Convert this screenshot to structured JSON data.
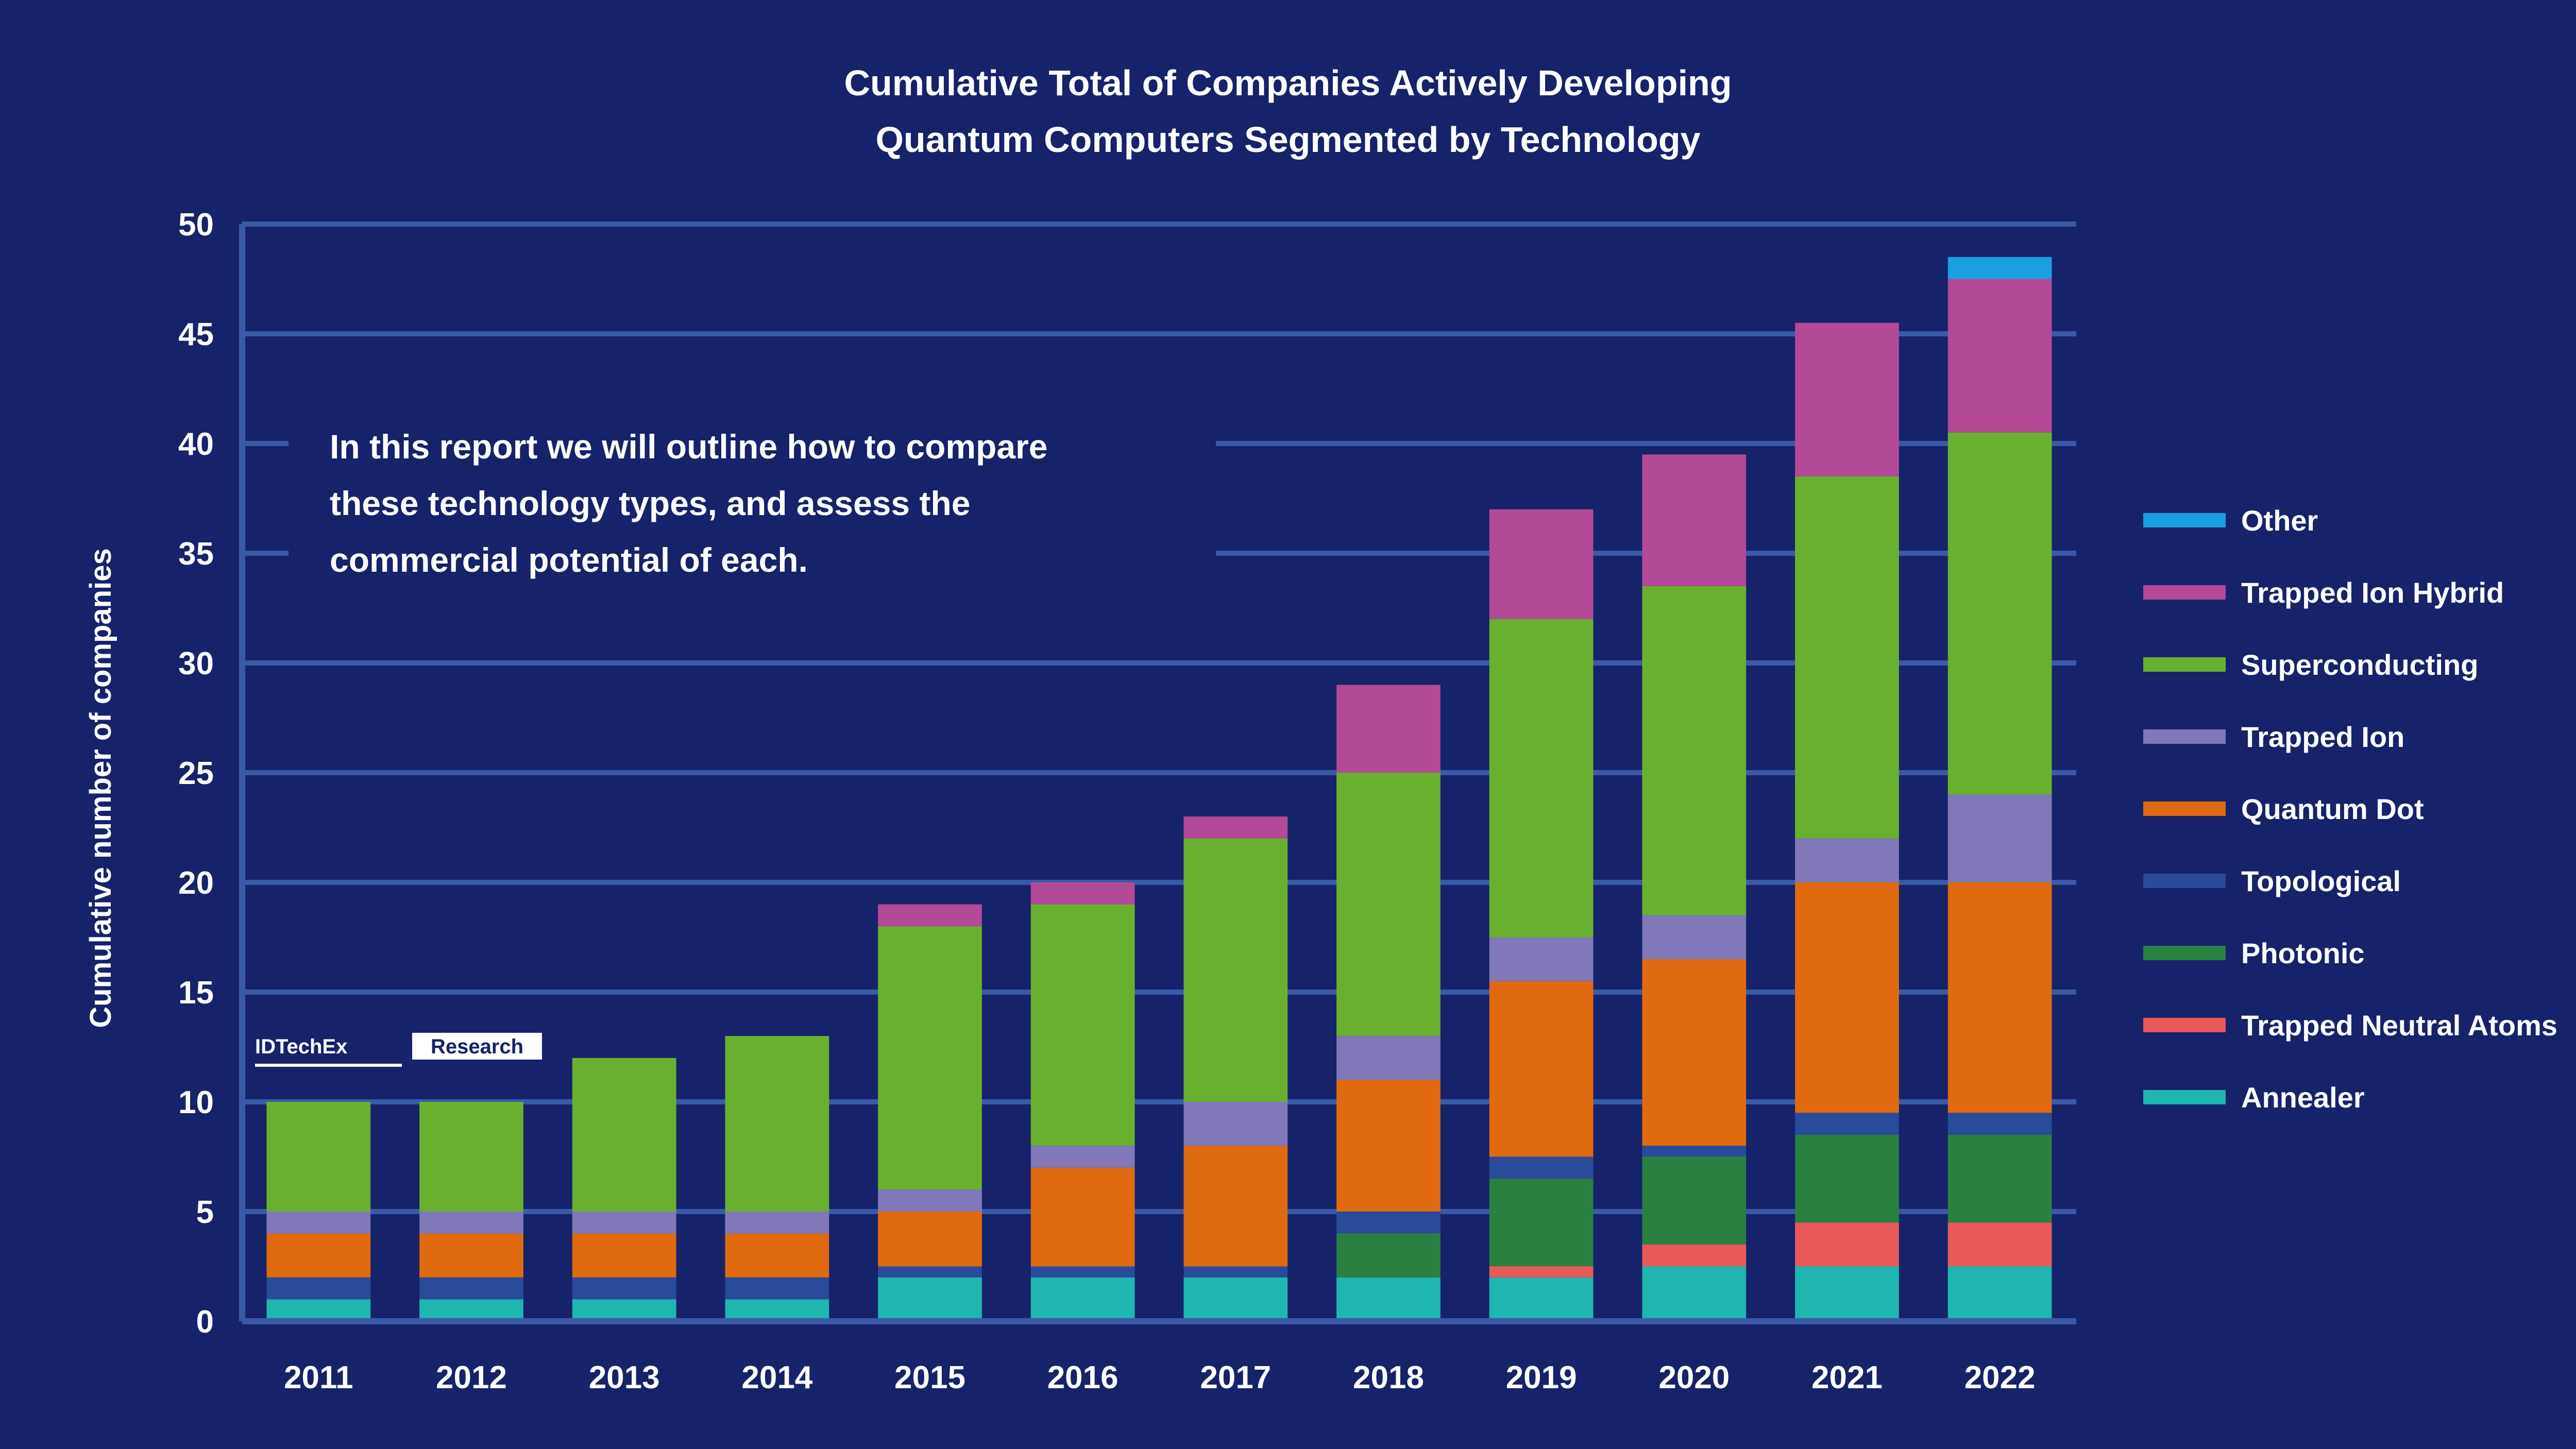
{
  "chart_data": {
    "type": "bar",
    "stacked": true,
    "title": [
      "Cumulative Total of Companies Actively Developing",
      "Quantum Computers Segmented by Technology"
    ],
    "ylabel": "Cumulative number of companies",
    "xlabel": "",
    "ylim": [
      0,
      50
    ],
    "yticks": [
      0,
      5,
      10,
      15,
      20,
      25,
      30,
      35,
      40,
      45,
      50
    ],
    "categories": [
      "2011",
      "2012",
      "2013",
      "2014",
      "2015",
      "2016",
      "2017",
      "2018",
      "2019",
      "2020",
      "2021",
      "2022"
    ],
    "series": [
      {
        "name": "Annealer",
        "color": "#20b5b0",
        "values": [
          1,
          1,
          1,
          1,
          2,
          2,
          2,
          2,
          2,
          2.5,
          2.5,
          2.5
        ]
      },
      {
        "name": "Trapped Neutral Atoms",
        "color": "#e85a5a",
        "values": [
          0,
          0,
          0,
          0,
          0,
          0,
          0,
          0,
          0.5,
          1,
          2,
          2
        ]
      },
      {
        "name": "Photonic",
        "color": "#2a8040",
        "values": [
          0,
          0,
          0,
          0,
          0,
          0,
          0,
          2,
          4,
          4,
          4,
          4
        ]
      },
      {
        "name": "Topological",
        "color": "#2a4a9a",
        "values": [
          1,
          1,
          1,
          1,
          0.5,
          0.5,
          0.5,
          1,
          1,
          0.5,
          1,
          1
        ]
      },
      {
        "name": "Quantum Dot",
        "color": "#e06a10",
        "values": [
          2,
          2,
          2,
          2,
          2.5,
          4.5,
          5.5,
          6,
          8,
          8.5,
          10.5,
          10.5
        ]
      },
      {
        "name": "Trapped Ion",
        "color": "#8078b8",
        "values": [
          1,
          1,
          1,
          1,
          1,
          1,
          2,
          2,
          2,
          2,
          2,
          4
        ]
      },
      {
        "name": "Superconducting",
        "color": "#6ab030",
        "values": [
          5,
          5,
          7,
          8,
          12,
          11,
          12,
          12,
          14.5,
          15,
          16.5,
          16.5
        ]
      },
      {
        "name": "Trapped Ion Hybrid",
        "color": "#b24a98",
        "values": [
          0,
          0,
          0,
          0,
          1,
          1,
          1,
          4,
          5,
          6,
          7,
          7
        ]
      },
      {
        "name": "Other",
        "color": "#1aa0e0",
        "values": [
          0,
          0,
          0,
          0,
          0,
          0,
          0,
          0,
          0,
          0,
          0,
          1
        ]
      }
    ],
    "legend_order": [
      "Other",
      "Trapped Ion Hybrid",
      "Superconducting",
      "Trapped Ion",
      "Quantum Dot",
      "Topological",
      "Photonic",
      "Trapped Neutral Atoms",
      "Annealer"
    ],
    "legend_position": "right",
    "grid": true,
    "annotation": [
      "In this report we will outline how to compare",
      "these technology types, and assess the",
      "commercial potential of each."
    ],
    "watermark": [
      "IDTechEx",
      "Research"
    ]
  },
  "colors": {
    "background": "#16226a",
    "axis": "#3a5aa8",
    "grid": "#3a5aa8"
  }
}
